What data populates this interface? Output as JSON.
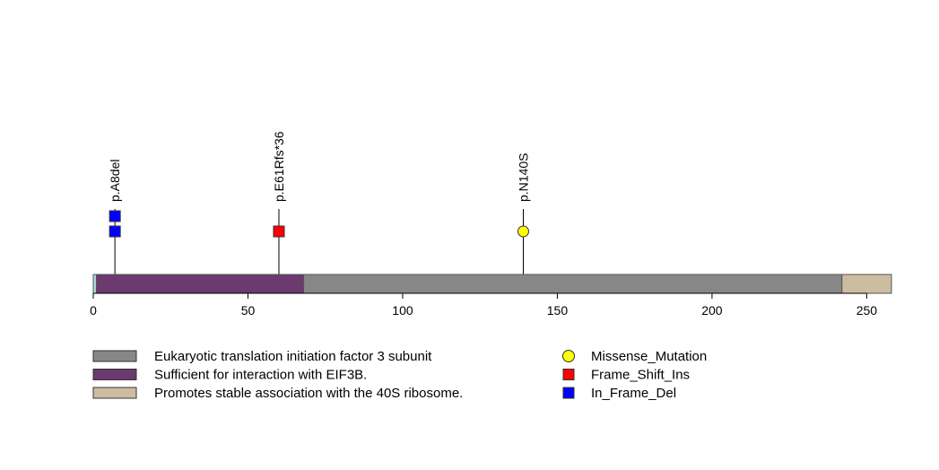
{
  "chart_data": {
    "type": "lollipop",
    "protein_length": 258,
    "xlim": [
      0,
      258
    ],
    "ticks": [
      0,
      50,
      100,
      150,
      200,
      250
    ],
    "colors": {
      "backbone": "#add8e6",
      "outline": "#555555"
    },
    "domains": [
      {
        "name": "Sufficient for interaction with EIF3B.",
        "start": 1,
        "end": 68,
        "color": "#6b3a6e"
      },
      {
        "name": "Eukaryotic translation initiation factor 3 subunit",
        "start": 68,
        "end": 242,
        "color": "#878787"
      },
      {
        "name": "Promotes stable association with the 40S ribosome.",
        "start": 242,
        "end": 258,
        "color": "#cdbda0"
      }
    ],
    "mutations": [
      {
        "label": "p.A8del",
        "position": 7,
        "count": 2,
        "type": "In_Frame_Del"
      },
      {
        "label": "p.E61Rfs*36",
        "position": 60,
        "count": 1,
        "type": "Frame_Shift_Ins"
      },
      {
        "label": "p.N140S",
        "position": 139,
        "count": 1,
        "type": "Missense_Mutation"
      }
    ],
    "mutation_types": [
      {
        "name": "Missense_Mutation",
        "shape": "circle",
        "color": "#ffff00"
      },
      {
        "name": "Frame_Shift_Ins",
        "shape": "square",
        "color": "#ff0000"
      },
      {
        "name": "In_Frame_Del",
        "shape": "square",
        "color": "#0000ff"
      }
    ],
    "legend_domains": [
      {
        "name": "Eukaryotic translation initiation factor 3 subunit",
        "color": "#878787"
      },
      {
        "name": "Sufficient for interaction with EIF3B.",
        "color": "#6b3a6e"
      },
      {
        "name": "Promotes stable association with the 40S ribosome.",
        "color": "#cdbda0"
      }
    ]
  }
}
